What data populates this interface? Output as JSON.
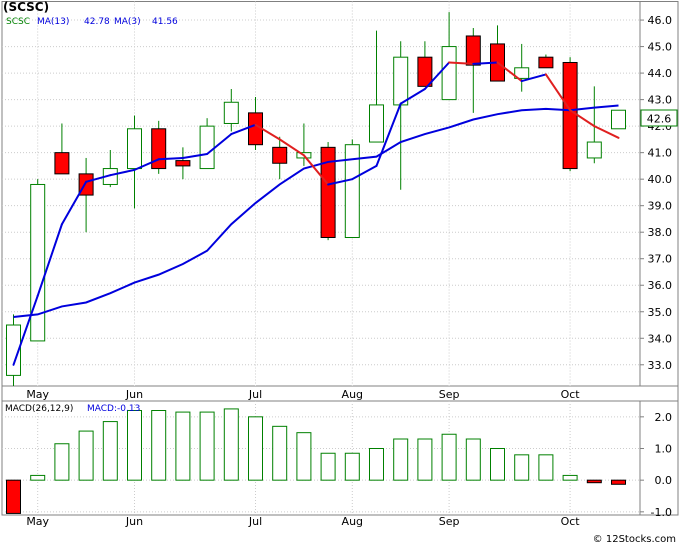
{
  "title": "(SCSC)",
  "credit": "© 12Stocks.com",
  "price_legend": {
    "symbol": "SCSC",
    "ma13_label": "MA(13)",
    "ma13_value": "42.78",
    "ma3_label": "MA(3)",
    "ma3_value": "41.56"
  },
  "macd_legend": {
    "label": "MACD(26,12,9)",
    "value_label": "MACD:-0.13"
  },
  "last_price": "42.6",
  "colors": {
    "up_candle": "#008000",
    "down_candle": "#ff0000",
    "ma13": "#0000dd",
    "ma3_up": "#0000dd",
    "ma3_down": "#e02020",
    "macd_pos": "#008000",
    "macd_neg": "#ff0000",
    "grid": "#cccccc",
    "last_price_box": "#008000"
  },
  "chart_data": [
    {
      "type": "candlestick",
      "frequency": "weekly",
      "x_ticks": [
        "May",
        "Jun",
        "Jul",
        "Aug",
        "Sep",
        "Oct"
      ],
      "y_ticks": [
        33.0,
        34.0,
        35.0,
        36.0,
        37.0,
        38.0,
        39.0,
        40.0,
        41.0,
        42.0,
        43.0,
        44.0,
        45.0,
        46.0
      ],
      "y_range": [
        32.2,
        46.7
      ],
      "candles": [
        {
          "o": 32.6,
          "h": 34.9,
          "l": 32.2,
          "c": 34.5
        },
        {
          "o": 33.9,
          "h": 40.0,
          "l": 33.9,
          "c": 39.8
        },
        {
          "o": 41.0,
          "h": 42.1,
          "l": 40.2,
          "c": 40.2
        },
        {
          "o": 40.2,
          "h": 40.8,
          "l": 38.0,
          "c": 39.4
        },
        {
          "o": 39.8,
          "h": 41.1,
          "l": 39.7,
          "c": 40.4
        },
        {
          "o": 40.4,
          "h": 42.4,
          "l": 38.9,
          "c": 41.9
        },
        {
          "o": 41.9,
          "h": 42.2,
          "l": 40.2,
          "c": 40.4
        },
        {
          "o": 40.7,
          "h": 41.2,
          "l": 40.0,
          "c": 40.5
        },
        {
          "o": 40.4,
          "h": 42.3,
          "l": 40.4,
          "c": 42.0
        },
        {
          "o": 42.1,
          "h": 43.4,
          "l": 41.8,
          "c": 42.9
        },
        {
          "o": 42.5,
          "h": 43.1,
          "l": 41.1,
          "c": 41.3
        },
        {
          "o": 41.2,
          "h": 41.6,
          "l": 40.0,
          "c": 40.6
        },
        {
          "o": 40.8,
          "h": 42.1,
          "l": 40.5,
          "c": 41.0
        },
        {
          "o": 41.2,
          "h": 41.4,
          "l": 37.7,
          "c": 37.8
        },
        {
          "o": 37.8,
          "h": 41.5,
          "l": 37.8,
          "c": 41.3
        },
        {
          "o": 41.4,
          "h": 45.6,
          "l": 41.4,
          "c": 42.8
        },
        {
          "o": 42.8,
          "h": 45.2,
          "l": 39.6,
          "c": 44.6
        },
        {
          "o": 44.6,
          "h": 45.2,
          "l": 43.5,
          "c": 43.5
        },
        {
          "o": 43.0,
          "h": 46.3,
          "l": 43.0,
          "c": 45.0
        },
        {
          "o": 45.4,
          "h": 45.7,
          "l": 42.5,
          "c": 44.3
        },
        {
          "o": 45.1,
          "h": 45.8,
          "l": 43.7,
          "c": 43.7
        },
        {
          "o": 43.8,
          "h": 45.1,
          "l": 43.3,
          "c": 44.2
        },
        {
          "o": 44.6,
          "h": 44.7,
          "l": 44.2,
          "c": 44.2
        },
        {
          "o": 44.4,
          "h": 44.6,
          "l": 40.3,
          "c": 40.4
        },
        {
          "o": 40.8,
          "h": 43.5,
          "l": 40.6,
          "c": 41.4
        },
        {
          "o": 41.9,
          "h": 42.6,
          "l": 41.9,
          "c": 42.6
        }
      ],
      "series": [
        {
          "name": "MA(13)",
          "values": [
            34.8,
            34.9,
            35.2,
            35.35,
            35.7,
            36.1,
            36.4,
            36.8,
            37.3,
            38.3,
            39.1,
            39.8,
            40.4,
            40.65,
            40.75,
            40.85,
            41.4,
            41.7,
            41.95,
            42.25,
            42.45,
            42.6,
            42.65,
            42.6,
            42.7,
            42.78
          ]
        },
        {
          "name": "MA(3)",
          "values": [
            33.0,
            35.6,
            38.3,
            39.9,
            40.15,
            40.35,
            40.75,
            40.8,
            40.95,
            41.7,
            42.05,
            41.5,
            40.9,
            39.8,
            40.0,
            40.5,
            42.85,
            43.4,
            44.4,
            44.35,
            44.4,
            43.7,
            43.95,
            42.6,
            42.0,
            41.56
          ]
        }
      ]
    },
    {
      "type": "bar",
      "name": "MACD(26,12,9)",
      "x_ticks": [
        "May",
        "Jun",
        "Jul",
        "Aug",
        "Sep",
        "Oct"
      ],
      "y_ticks": [
        -1.0,
        0.0,
        1.0,
        2.0
      ],
      "y_range": [
        -1.1,
        2.5
      ],
      "values": [
        -1.05,
        0.15,
        1.15,
        1.55,
        1.85,
        2.2,
        2.2,
        2.15,
        2.15,
        2.25,
        2.0,
        1.7,
        1.5,
        0.85,
        0.85,
        1.0,
        1.3,
        1.3,
        1.45,
        1.3,
        1.0,
        0.8,
        0.8,
        0.15,
        -0.08,
        -0.13
      ]
    }
  ]
}
